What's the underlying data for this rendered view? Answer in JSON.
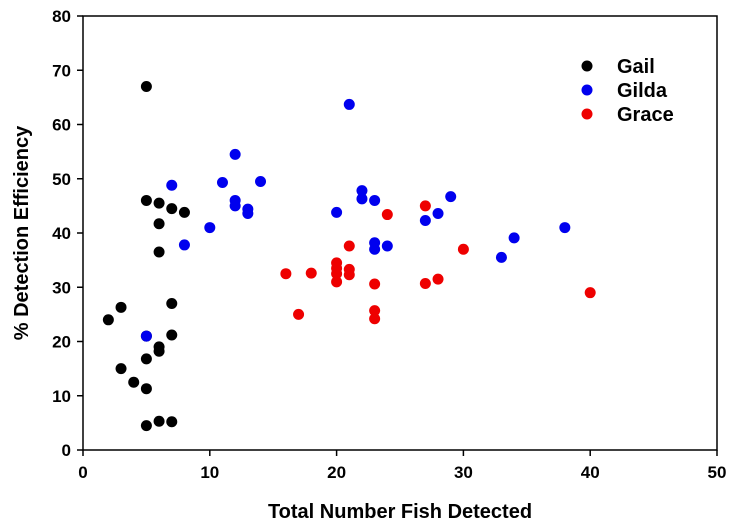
{
  "chart_data": {
    "type": "scatter",
    "title": "",
    "xlabel": "Total Number Fish Detected",
    "ylabel": "% Detection Efficiency",
    "xlim": [
      0,
      50
    ],
    "ylim": [
      0,
      80
    ],
    "xticks": [
      0,
      10,
      20,
      30,
      40,
      50
    ],
    "yticks": [
      0,
      10,
      20,
      30,
      40,
      50,
      60,
      70,
      80
    ],
    "grid": false,
    "legend_position": "top-right",
    "series": [
      {
        "name": "Gail",
        "color": "#000000",
        "points": [
          [
            2,
            24
          ],
          [
            3,
            26.3
          ],
          [
            3,
            15
          ],
          [
            4,
            12.5
          ],
          [
            5,
            67
          ],
          [
            5,
            46
          ],
          [
            5,
            21
          ],
          [
            5,
            16.8
          ],
          [
            5,
            11.3
          ],
          [
            5,
            4.5
          ],
          [
            6,
            45.5
          ],
          [
            6,
            41.7
          ],
          [
            6,
            36.5
          ],
          [
            6,
            19
          ],
          [
            6,
            18.2
          ],
          [
            6,
            5.3
          ],
          [
            7,
            44.5
          ],
          [
            7,
            27
          ],
          [
            7,
            21.2
          ],
          [
            7,
            5.2
          ],
          [
            8,
            43.8
          ]
        ]
      },
      {
        "name": "Gilda",
        "color": "#0000ee",
        "points": [
          [
            5,
            21
          ],
          [
            7,
            48.8
          ],
          [
            8,
            37.8
          ],
          [
            10,
            41
          ],
          [
            11,
            49.3
          ],
          [
            12,
            54.5
          ],
          [
            12,
            46
          ],
          [
            12,
            45
          ],
          [
            13,
            44.4
          ],
          [
            13,
            43.6
          ],
          [
            14,
            49.5
          ],
          [
            20,
            43.8
          ],
          [
            21,
            63.7
          ],
          [
            22,
            47.8
          ],
          [
            22,
            46.3
          ],
          [
            23,
            46
          ],
          [
            23,
            38.2
          ],
          [
            23,
            37
          ],
          [
            24,
            37.6
          ],
          [
            27,
            42.3
          ],
          [
            28,
            43.6
          ],
          [
            29,
            46.7
          ],
          [
            33,
            35.5
          ],
          [
            34,
            39.1
          ],
          [
            38,
            41
          ]
        ]
      },
      {
        "name": "Grace",
        "color": "#ee0000",
        "points": [
          [
            16,
            32.5
          ],
          [
            17,
            25
          ],
          [
            18,
            32.6
          ],
          [
            20,
            34.5
          ],
          [
            20,
            33.5
          ],
          [
            20,
            32.5
          ],
          [
            20,
            31
          ],
          [
            21,
            37.6
          ],
          [
            21,
            33.3
          ],
          [
            21,
            32.3
          ],
          [
            23,
            30.6
          ],
          [
            23,
            25.7
          ],
          [
            23,
            24.2
          ],
          [
            24,
            43.4
          ],
          [
            27,
            45
          ],
          [
            27,
            30.7
          ],
          [
            28,
            31.5
          ],
          [
            30,
            37
          ],
          [
            40,
            29
          ]
        ]
      }
    ]
  }
}
